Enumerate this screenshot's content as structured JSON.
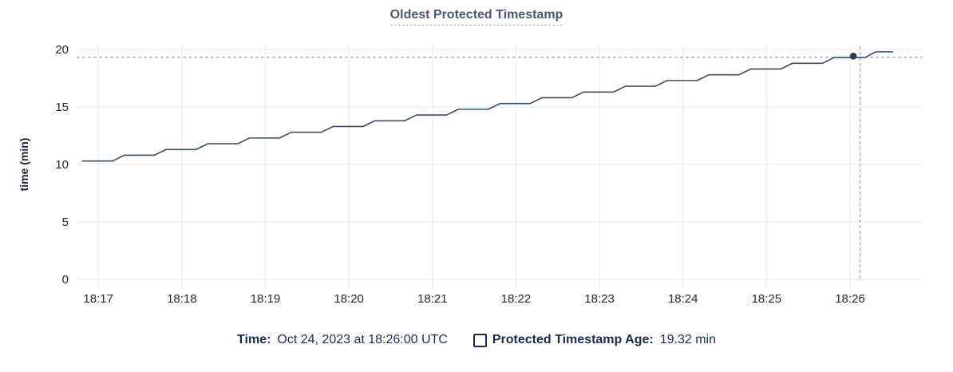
{
  "title": "Oldest Protected Timestamp",
  "chart_data": {
    "type": "line",
    "title": "Oldest Protected Timestamp",
    "xlabel": "",
    "ylabel": "time (min)",
    "ylim": [
      0,
      20
    ],
    "yticks": [
      0,
      5,
      10,
      15,
      20
    ],
    "xlim": [
      16.74,
      26.86
    ],
    "x_unit": "minutes after 18:00 UTC",
    "grid": true,
    "legend_position": "bottom",
    "xticks": [
      {
        "x": 17,
        "label": "18:17"
      },
      {
        "x": 18,
        "label": "18:18"
      },
      {
        "x": 19,
        "label": "18:19"
      },
      {
        "x": 20,
        "label": "18:20"
      },
      {
        "x": 21,
        "label": "18:21"
      },
      {
        "x": 22,
        "label": "18:22"
      },
      {
        "x": 23,
        "label": "18:23"
      },
      {
        "x": 24,
        "label": "18:24"
      },
      {
        "x": 25,
        "label": "18:25"
      },
      {
        "x": 26,
        "label": "18:26"
      }
    ],
    "series": [
      {
        "name": "Protected Timestamp Age",
        "points": [
          [
            16.81,
            10.3
          ],
          [
            17.17,
            10.3
          ],
          [
            17.31,
            10.8
          ],
          [
            17.67,
            10.8
          ],
          [
            17.81,
            11.3
          ],
          [
            18.17,
            11.3
          ],
          [
            18.31,
            11.8
          ],
          [
            18.67,
            11.8
          ],
          [
            18.81,
            12.3
          ],
          [
            19.17,
            12.3
          ],
          [
            19.31,
            12.8
          ],
          [
            19.67,
            12.8
          ],
          [
            19.81,
            13.3
          ],
          [
            20.17,
            13.3
          ],
          [
            20.31,
            13.8
          ],
          [
            20.67,
            13.8
          ],
          [
            20.81,
            14.3
          ],
          [
            21.17,
            14.3
          ],
          [
            21.31,
            14.8
          ],
          [
            21.67,
            14.8
          ],
          [
            21.81,
            15.3
          ],
          [
            22.17,
            15.3
          ],
          [
            22.31,
            15.8
          ],
          [
            22.67,
            15.8
          ],
          [
            22.81,
            16.3
          ],
          [
            23.17,
            16.3
          ],
          [
            23.31,
            16.8
          ],
          [
            23.67,
            16.8
          ],
          [
            23.81,
            17.3
          ],
          [
            24.17,
            17.3
          ],
          [
            24.31,
            17.8
          ],
          [
            24.67,
            17.8
          ],
          [
            24.81,
            18.3
          ],
          [
            25.17,
            18.3
          ],
          [
            25.31,
            18.8
          ],
          [
            25.67,
            18.8
          ],
          [
            25.81,
            19.3
          ],
          [
            26.18,
            19.3
          ],
          [
            26.31,
            19.8
          ],
          [
            26.51,
            19.8
          ]
        ]
      }
    ],
    "hover": {
      "hline_value": 19.32,
      "vline_x": 26.12,
      "dot": [
        26.04,
        19.42
      ],
      "time_label": "Oct 24, 2023 at 18:26:00 UTC",
      "value_label": "19.32 min"
    }
  },
  "legend": {
    "time_label": "Time:",
    "time_value": "Oct 24, 2023 at 18:26:00 UTC",
    "series_label": "Protected Timestamp Age:",
    "series_value": "19.32 min"
  },
  "colors": {
    "grid": "#f0f0f0",
    "line": "#3e4d66",
    "dot": "#2c3c57",
    "crosshair": "#9fb1bd",
    "tick_text": "#24292e",
    "title_text": "#475872",
    "legend_text": "#1b2c4d"
  }
}
